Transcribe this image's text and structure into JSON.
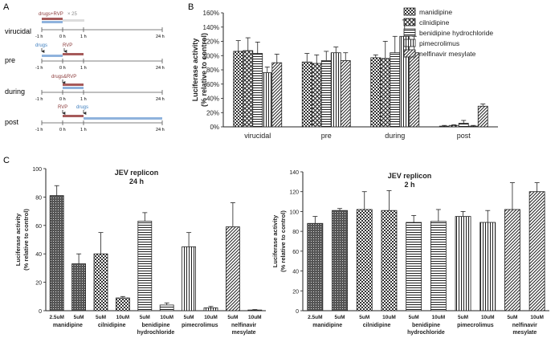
{
  "panel_labels": {
    "a": "A",
    "b": "B",
    "c": "C"
  },
  "colors": {
    "drugs": "#3f7fbf",
    "rvp": "#8b3a3a",
    "bar_blue": "#8fb3dd",
    "bar_red": "#a65a5a",
    "arrow": "#333333"
  },
  "timeline": {
    "rows": [
      {
        "label": "virucidal",
        "top_text": "drugs+RVP",
        "mult": "× 25",
        "ticks": [
          "-1 h",
          "0 h",
          "1 h",
          "24 h"
        ]
      },
      {
        "label": "pre",
        "top_text_1": "drugs",
        "top_text_2": "RVP",
        "ticks": [
          "-1 h",
          "0 h",
          "1 h",
          "24 h"
        ]
      },
      {
        "label": "during",
        "top_text": "drugs&RVP",
        "ticks": [
          "-1 h",
          "0 h",
          "1 h",
          "24 h"
        ]
      },
      {
        "label": "post",
        "top_text_1": "RVP",
        "top_text_2": "drugs",
        "ticks": [
          "-1 h",
          "0 h",
          "1 h",
          "24 h"
        ]
      }
    ]
  },
  "chart_data": [
    {
      "id": "B",
      "type": "bar",
      "title": "",
      "xlabel": "",
      "ylabel": "Luciferase activity\n(% relative to control)",
      "ylim": [
        0,
        160
      ],
      "yticks": [
        "0%",
        "20%",
        "40%",
        "60%",
        "80%",
        "100%",
        "120%",
        "140%",
        "160%"
      ],
      "categories": [
        "virucidal",
        "pre",
        "during",
        "post"
      ],
      "legend_position": "top-right",
      "series": [
        {
          "name": "manidipine",
          "values": [
            106,
            91,
            97,
            1
          ],
          "errors": [
            15,
            12,
            4,
            1
          ]
        },
        {
          "name": "cilnidipine",
          "values": [
            107,
            89,
            96,
            2
          ],
          "errors": [
            18,
            12,
            24,
            1
          ]
        },
        {
          "name": "benidipine hydrochloride",
          "values": [
            103,
            93,
            104,
            5
          ],
          "errors": [
            16,
            13,
            23,
            4
          ]
        },
        {
          "name": "pimecrolimus",
          "values": [
            76,
            104,
            127,
            1
          ],
          "errors": [
            8,
            8,
            23,
            1
          ]
        },
        {
          "name": "nelfinavir mesylate",
          "values": [
            90,
            93,
            104,
            29
          ],
          "errors": [
            12,
            11,
            23,
            3
          ]
        }
      ]
    },
    {
      "id": "C1",
      "type": "bar",
      "title": "JEV replicon\n24 h",
      "ylabel": "Luciferase activity\n(% relative to control)",
      "ylim": [
        0,
        100
      ],
      "yticks": [
        "0",
        "20",
        "40",
        "60",
        "80",
        "100"
      ],
      "bar_labels": [
        "2.5uM",
        "5uM",
        "5uM",
        "10uM",
        "5uM",
        "10uM",
        "5uM",
        "10uM",
        "5uM",
        "10uM"
      ],
      "groups": [
        "manidipine",
        "cilnidipine",
        "benidipine\nhydrochloride",
        "pimecrolimus",
        "nelfinavir\nmesylate"
      ],
      "values": [
        81,
        33,
        40,
        9,
        63,
        4,
        45,
        2,
        59,
        0.5
      ],
      "errors": [
        7,
        7,
        15,
        1,
        6,
        1.5,
        10,
        1,
        17,
        0.3
      ]
    },
    {
      "id": "C2",
      "type": "bar",
      "title": "JEV replicon\n2 h",
      "ylabel": "Luciferase activity\n(% relative to control)",
      "ylim": [
        0,
        140
      ],
      "yticks": [
        "0",
        "20",
        "40",
        "60",
        "80",
        "100",
        "120",
        "140"
      ],
      "bar_labels": [
        "2.5uM",
        "5uM",
        "5uM",
        "10uM",
        "5uM",
        "10uM",
        "5uM",
        "10uM",
        "5uM",
        "10uM"
      ],
      "groups": [
        "manidipine",
        "cilnidipine",
        "benidipine\nhydrochloride",
        "pimecrolimus",
        "nelfinavir\nmesylate"
      ],
      "values": [
        88,
        101,
        102,
        101,
        89,
        90,
        95,
        89,
        102,
        120
      ],
      "errors": [
        7,
        2,
        18,
        20,
        7,
        12,
        5,
        12,
        27,
        9
      ]
    }
  ]
}
